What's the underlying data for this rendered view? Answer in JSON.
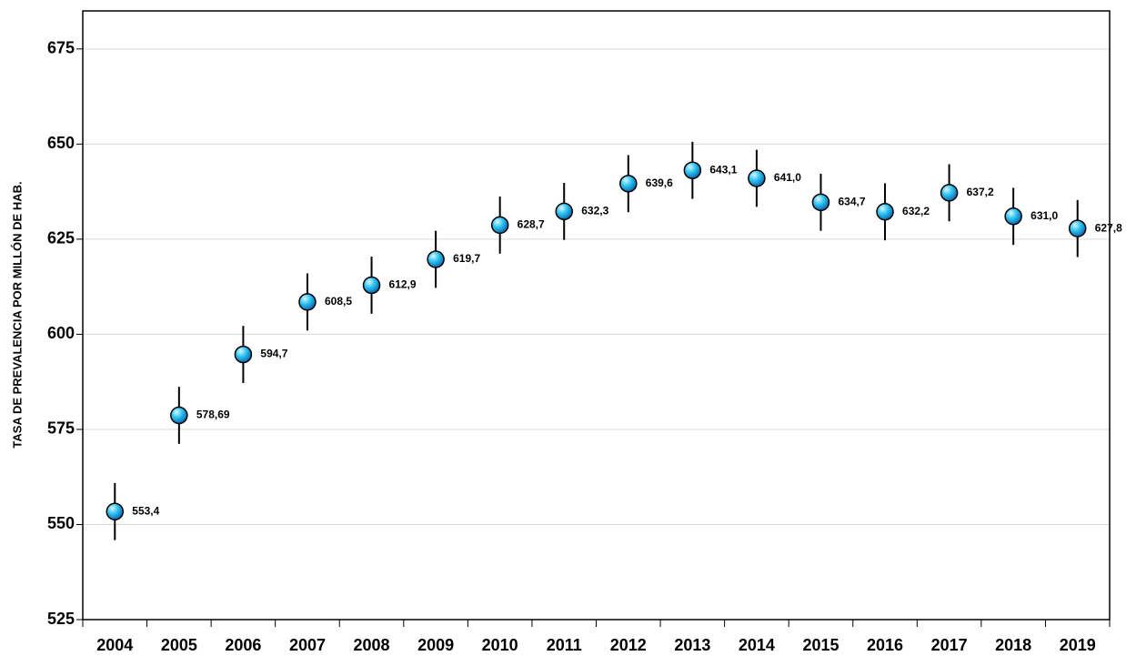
{
  "chart_data": {
    "type": "errorbar",
    "y_label": "TASA DE PREVALENCIA POR MILLÓN DE HAB.",
    "categories": [
      "2004",
      "2005",
      "2006",
      "2007",
      "2008",
      "2009",
      "2010",
      "2011",
      "2012",
      "2013",
      "2014",
      "2015",
      "2016",
      "2017",
      "2018",
      "2019"
    ],
    "values": [
      553.4,
      578.69,
      594.7,
      608.5,
      612.9,
      619.7,
      628.7,
      632.3,
      639.6,
      643.1,
      641.0,
      634.7,
      632.2,
      637.2,
      631.0,
      627.8
    ],
    "value_labels": [
      "553,4",
      "578,69",
      "594,7",
      "608,5",
      "612,9",
      "619,7",
      "628,7",
      "632,3",
      "639,6",
      "643,1",
      "641,0",
      "634,7",
      "632,2",
      "637,2",
      "631,0",
      "627,8"
    ],
    "errors": [
      7.5,
      7.5,
      7.5,
      7.5,
      7.5,
      7.5,
      7.5,
      7.5,
      7.5,
      7.5,
      7.5,
      7.5,
      7.5,
      7.5,
      7.5,
      7.5
    ],
    "color": "#1ab0e8",
    "ylim": [
      525,
      685
    ],
    "yticks": [
      525,
      550,
      575,
      600,
      625,
      650,
      675
    ],
    "grid": true
  }
}
